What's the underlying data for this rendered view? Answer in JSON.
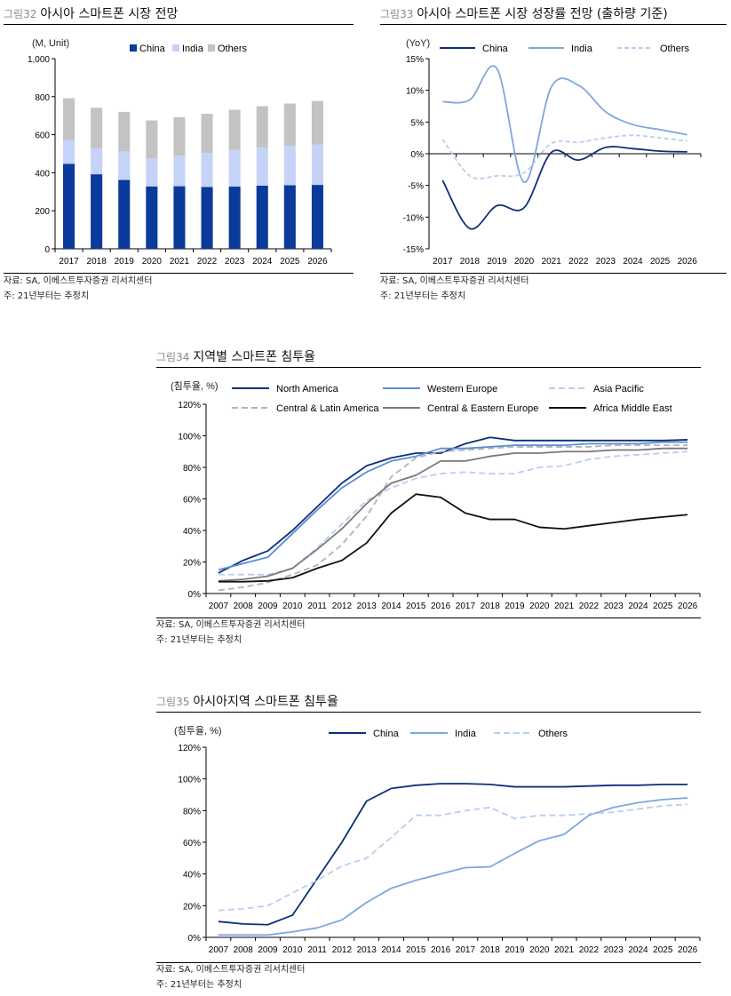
{
  "figures": [
    {
      "num": "그림32",
      "title": "아시아 스마트폰 시장 전망",
      "source": "자료: SA, 이베스트투자증권 리서치센터",
      "note": "주: 21년부터는 추정치"
    },
    {
      "num": "그림33",
      "title": "아시아 스마트폰 시장 성장률 전망 (출하량 기준)",
      "source": "자료: SA, 이베스트투자증권 리서치센터",
      "note": "주: 21년부터는 추정치"
    },
    {
      "num": "그림34",
      "title": "지역별 스마트폰 침투율",
      "source": "자료: SA, 이베스트투자증권 리서치센터",
      "note": "주: 21년부터는 추정치"
    },
    {
      "num": "그림35",
      "title": "아시아지역 스마트폰 침투율",
      "source": "자료: SA, 이베스트투자증권 리서치센터",
      "note": "주: 21년부터는 추정치"
    }
  ],
  "chart_data": [
    {
      "type": "bar",
      "stacked": true,
      "unit_label": "(M, Unit)",
      "categories": [
        "2017",
        "2018",
        "2019",
        "2020",
        "2021",
        "2022",
        "2023",
        "2024",
        "2025",
        "2026"
      ],
      "ylim": [
        0,
        1000
      ],
      "yticks": [
        0,
        200,
        400,
        600,
        800,
        1000
      ],
      "ytick_labels": [
        "0",
        "200",
        "400",
        "600",
        "800",
        "1,000"
      ],
      "series": [
        {
          "name": "China",
          "color": "#0a3a9a",
          "values": [
            447,
            392,
            362,
            328,
            329,
            325,
            327,
            332,
            334,
            336
          ]
        },
        {
          "name": "India",
          "color": "#c4d3f7",
          "values": [
            125,
            138,
            152,
            147,
            160,
            178,
            193,
            200,
            208,
            212
          ]
        },
        {
          "name": "Others",
          "color": "#c3c3c3",
          "values": [
            220,
            212,
            206,
            200,
            203,
            207,
            211,
            218,
            222,
            229
          ]
        }
      ]
    },
    {
      "type": "line",
      "unit_label": "(YoY)",
      "categories": [
        "2017",
        "2018",
        "2019",
        "2020",
        "2021",
        "2022",
        "2023",
        "2024",
        "2025",
        "2026"
      ],
      "ylim": [
        -15,
        15
      ],
      "yticks": [
        -15,
        -10,
        -5,
        0,
        5,
        10,
        15
      ],
      "ytick_labels": [
        "-15%",
        "-10%",
        "-5%",
        "0%",
        "5%",
        "10%",
        "15%"
      ],
      "series": [
        {
          "name": "China",
          "color": "#0d2f7a",
          "dash": "",
          "values": [
            -4.2,
            -11.8,
            -8.2,
            -8.5,
            0.2,
            -1.0,
            1.0,
            0.8,
            0.4,
            0.3
          ]
        },
        {
          "name": "India",
          "color": "#7ea6e0",
          "dash": "",
          "values": [
            8.2,
            8.5,
            13.4,
            -4.5,
            10.5,
            10.8,
            6.6,
            4.6,
            3.8,
            3.0
          ]
        },
        {
          "name": "Others",
          "color": "#b9cdf0",
          "dash": "5,3",
          "values": [
            2.3,
            -3.5,
            -3.5,
            -3.0,
            1.6,
            1.8,
            2.5,
            2.9,
            2.5,
            2.0
          ]
        }
      ]
    },
    {
      "type": "line",
      "unit_label": "(침투율, %)",
      "categories": [
        "2007",
        "2008",
        "2009",
        "2010",
        "2011",
        "2012",
        "2013",
        "2014",
        "2015",
        "2016",
        "2017",
        "2018",
        "2019",
        "2020",
        "2021",
        "2022",
        "2023",
        "2024",
        "2025",
        "2026"
      ],
      "ylim": [
        0,
        120
      ],
      "yticks": [
        0,
        20,
        40,
        60,
        80,
        100,
        120
      ],
      "ytick_labels": [
        "0%",
        "20%",
        "40%",
        "60%",
        "80%",
        "100%",
        "120%"
      ],
      "series": [
        {
          "name": "North America",
          "color": "#0d2f7a",
          "dash": "",
          "values": [
            13,
            21,
            27,
            40,
            55,
            70,
            81,
            86,
            89,
            89,
            95,
            99,
            97,
            97,
            97,
            97,
            97,
            97,
            97,
            97.5
          ]
        },
        {
          "name": "Western Europe",
          "color": "#5b8bd9",
          "dash": "",
          "values": [
            15,
            19,
            23,
            38,
            53,
            67,
            77,
            84,
            87,
            92,
            92,
            93,
            94,
            94,
            94,
            95,
            95,
            95,
            96,
            96
          ]
        },
        {
          "name": "Asia Pacific",
          "color": "#b9cdf0",
          "dash": "7,4",
          "values": [
            12,
            12,
            12,
            16,
            29,
            44,
            59,
            67,
            73,
            76,
            77,
            76,
            76,
            80,
            81,
            85,
            87,
            88,
            89,
            90
          ]
        },
        {
          "name": "Central & Latin America",
          "color": "#b3b3b3",
          "dash": "7,4",
          "values": [
            2,
            4,
            7,
            12,
            18,
            31,
            49,
            74,
            86,
            90,
            91,
            92,
            93,
            93,
            93,
            93,
            94,
            94,
            94,
            94
          ]
        },
        {
          "name": "Central & Eastern Europe",
          "color": "#7a7a7a",
          "dash": "",
          "values": [
            8,
            9,
            11,
            16,
            28,
            41,
            57,
            70,
            75,
            84,
            84,
            87,
            89,
            89,
            90,
            90,
            91,
            91,
            92,
            92
          ]
        },
        {
          "name": "Africa Middle East",
          "color": "#111111",
          "dash": "",
          "values": [
            7.5,
            7.5,
            8,
            10,
            16,
            21,
            32,
            51,
            63,
            61,
            51,
            47,
            47,
            42,
            41,
            43,
            45,
            47,
            48.5,
            50
          ]
        }
      ]
    },
    {
      "type": "line",
      "unit_label": "(침투율, %)",
      "categories": [
        "2007",
        "2008",
        "2009",
        "2010",
        "2011",
        "2012",
        "2013",
        "2014",
        "2015",
        "2016",
        "2017",
        "2018",
        "2019",
        "2020",
        "2021",
        "2022",
        "2023",
        "2024",
        "2025",
        "2026"
      ],
      "ylim": [
        0,
        120
      ],
      "yticks": [
        0,
        20,
        40,
        60,
        80,
        100,
        120
      ],
      "ytick_labels": [
        "0%",
        "20%",
        "40%",
        "60%",
        "80%",
        "100%",
        "120%"
      ],
      "series": [
        {
          "name": "China",
          "color": "#0d2f7a",
          "dash": "",
          "values": [
            10,
            8.5,
            8,
            14,
            37,
            60,
            86,
            94,
            96,
            97,
            97,
            96.5,
            95,
            95,
            95,
            95.5,
            96,
            96,
            96.5,
            96.5
          ]
        },
        {
          "name": "India",
          "color": "#7ea6e0",
          "dash": "",
          "values": [
            1.5,
            1.5,
            1.5,
            3.5,
            6,
            11,
            22,
            31,
            36,
            40,
            44,
            44.5,
            53,
            61,
            65,
            77,
            82,
            85,
            87,
            88
          ]
        },
        {
          "name": "Others",
          "color": "#b9cdf0",
          "dash": "7,4",
          "values": [
            17,
            18,
            20,
            28,
            36,
            45,
            50,
            63,
            77,
            77,
            80,
            82,
            75,
            77,
            77,
            78,
            79,
            81,
            83,
            84
          ]
        }
      ]
    }
  ]
}
